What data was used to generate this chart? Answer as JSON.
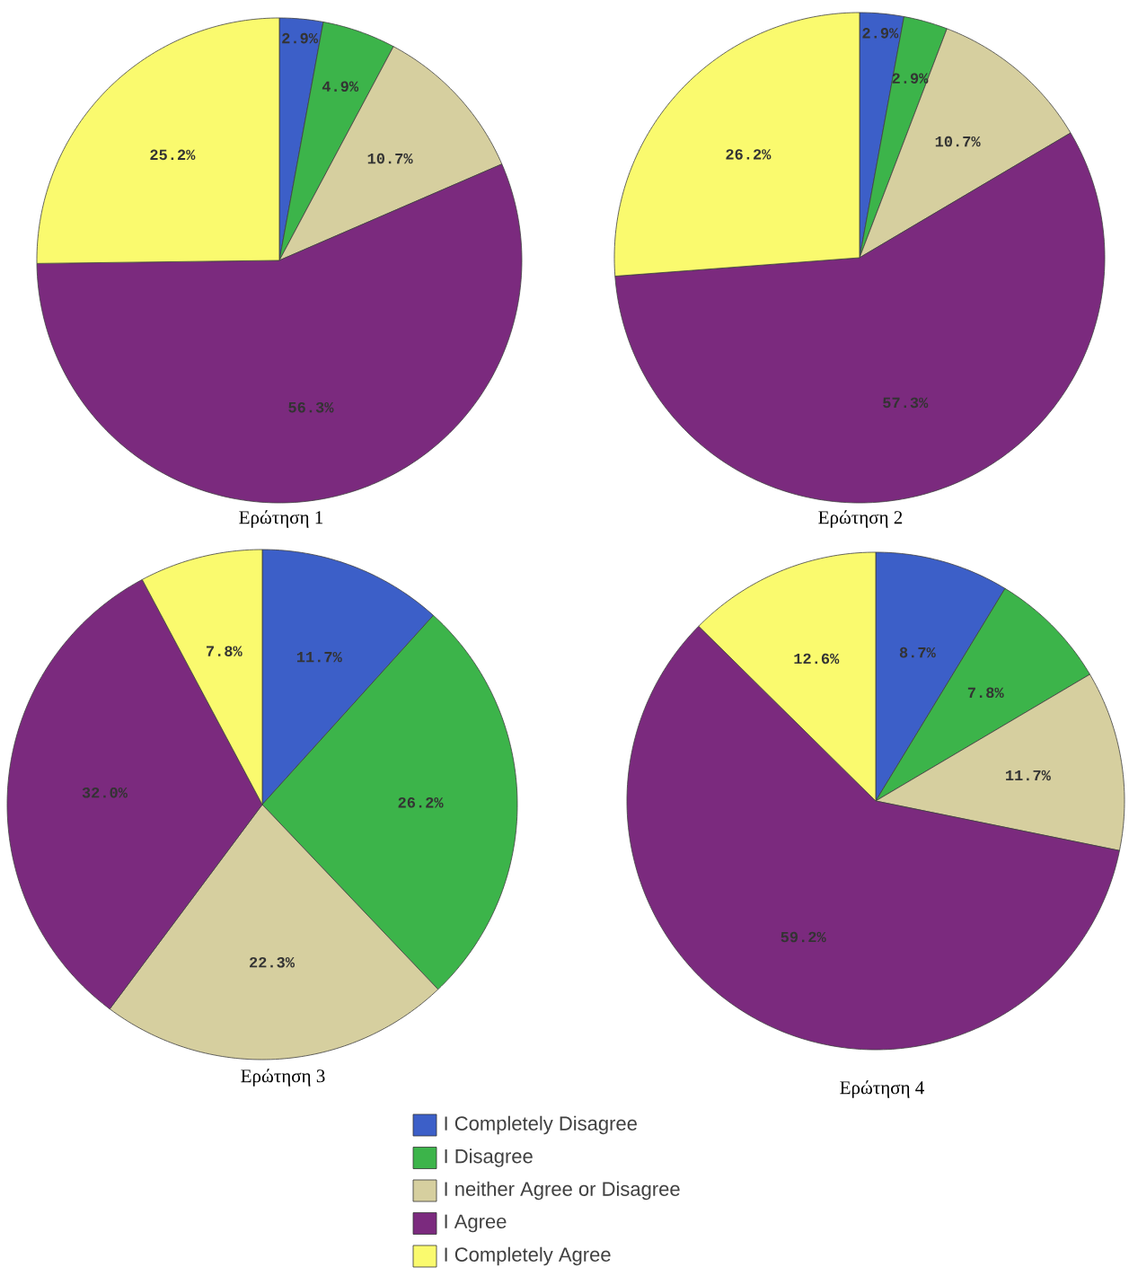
{
  "chart_data": [
    {
      "type": "pie",
      "title": "Ερώτηση 1",
      "categories": [
        null,
        null,
        null,
        null,
        null
      ],
      "values": [
        2.9,
        4.9,
        10.7,
        56.3,
        25.2
      ],
      "colors": [
        "#3c5fc8",
        "#3cb44a",
        "#d6cf9f",
        "#7b2a7e",
        "#fafa6e"
      ],
      "value_labels": [
        "2.9%",
        "4.9%",
        "10.7%",
        "56.3%",
        "25.2%"
      ]
    },
    {
      "type": "pie",
      "title": "Ερώτηση 2",
      "categories": [
        null,
        null,
        null,
        null,
        null
      ],
      "values": [
        2.9,
        2.9,
        10.7,
        57.3,
        26.2
      ],
      "colors": [
        "#3c5fc8",
        "#3cb44a",
        "#d6cf9f",
        "#7b2a7e",
        "#fafa6e"
      ],
      "value_labels": [
        "2.9%",
        "2.9%",
        "10.7%",
        "57.3%",
        "26.2%"
      ]
    },
    {
      "type": "pie",
      "title": "Ερώτηση 3",
      "categories": [
        null,
        null,
        null,
        null,
        null
      ],
      "values": [
        11.7,
        26.2,
        22.3,
        32.0,
        7.8
      ],
      "colors": [
        "#3c5fc8",
        "#3cb44a",
        "#d6cf9f",
        "#7b2a7e",
        "#fafa6e"
      ],
      "value_labels": [
        "11.7%",
        "26.2%",
        "22.3%",
        "32.0%",
        "7.8%"
      ]
    },
    {
      "type": "pie",
      "title": "Ερώτηση 4",
      "categories": [
        "I Completely Disagree",
        "I Disagree",
        "I neither Agree or Disagree",
        "I Agree",
        "I Completely Agree"
      ],
      "values": [
        8.7,
        7.8,
        11.7,
        59.2,
        12.6
      ],
      "colors": [
        "#3c5fc8",
        "#3cb44a",
        "#d6cf9f",
        "#7b2a7e",
        "#fafa6e"
      ],
      "value_labels": [
        "8.7%",
        "7.8%",
        "11.7%",
        "59.2%",
        "12.6%"
      ],
      "legend": "bottom"
    }
  ]
}
